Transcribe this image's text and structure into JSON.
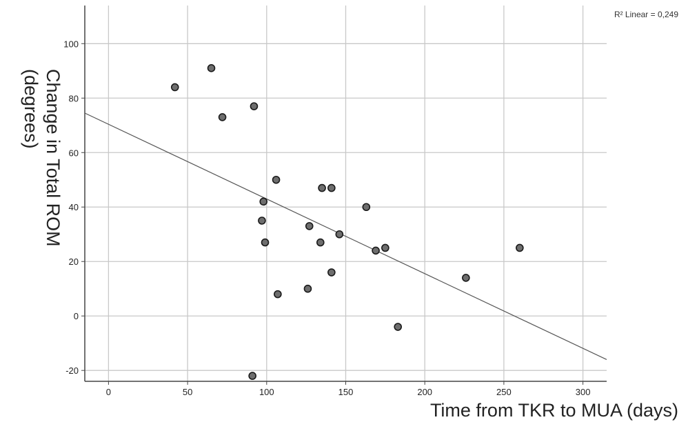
{
  "chart_data": {
    "type": "scatter",
    "title": "",
    "xlabel": "Time from TKR to MUA (days)",
    "ylabel_lines": [
      "Change in Total ROM",
      "(degrees)"
    ],
    "xlim": [
      -15,
      315
    ],
    "ylim": [
      -24,
      114
    ],
    "xticks": [
      0,
      50,
      100,
      150,
      200,
      250,
      300
    ],
    "yticks": [
      -20,
      0,
      20,
      40,
      60,
      80,
      100
    ],
    "grid": true,
    "annotation": "R² Linear = 0,249",
    "colors": {
      "point_fill": "#6e6e6e",
      "point_stroke": "#1a1a1a",
      "fit_line": "#555555",
      "grid": "#c8c8c8",
      "axis": "#444444"
    },
    "points": [
      {
        "x": 42,
        "y": 84
      },
      {
        "x": 65,
        "y": 91
      },
      {
        "x": 72,
        "y": 73
      },
      {
        "x": 92,
        "y": 77
      },
      {
        "x": 91,
        "y": -22
      },
      {
        "x": 106,
        "y": 50
      },
      {
        "x": 98,
        "y": 42
      },
      {
        "x": 97,
        "y": 35
      },
      {
        "x": 99,
        "y": 27
      },
      {
        "x": 107,
        "y": 8
      },
      {
        "x": 126,
        "y": 10
      },
      {
        "x": 127,
        "y": 33
      },
      {
        "x": 134,
        "y": 27
      },
      {
        "x": 135,
        "y": 47
      },
      {
        "x": 141,
        "y": 47
      },
      {
        "x": 141,
        "y": 16
      },
      {
        "x": 146,
        "y": 30
      },
      {
        "x": 163,
        "y": 40
      },
      {
        "x": 169,
        "y": 24
      },
      {
        "x": 175,
        "y": 25
      },
      {
        "x": 183,
        "y": -4
      },
      {
        "x": 226,
        "y": 14
      },
      {
        "x": 260,
        "y": 25
      }
    ],
    "fit_line": {
      "x": [
        -15,
        315
      ],
      "y": [
        74.5,
        -16
      ]
    }
  }
}
